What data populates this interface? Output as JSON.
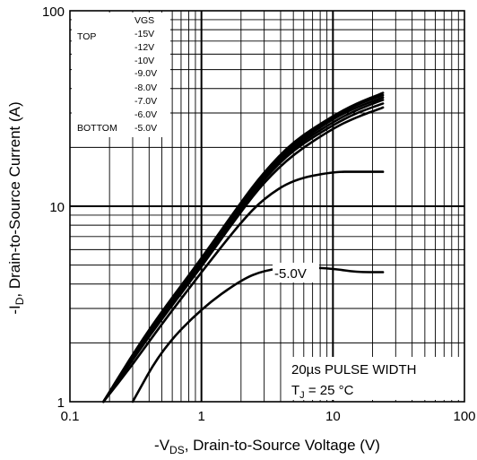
{
  "chart_data": {
    "type": "line",
    "x_scale": "log",
    "y_scale": "log",
    "xlim": [
      0.1,
      100
    ],
    "ylim": [
      1,
      100
    ],
    "grid": true,
    "x_ticks": [
      "0.1",
      "1",
      "10",
      "100"
    ],
    "y_ticks": [
      "1",
      "10",
      "100"
    ],
    "xlabel": {
      "prefix": "-V",
      "sub": "DS",
      "suffix": ", Drain-to-Source Voltage (V)"
    },
    "ylabel": {
      "prefix": "-I",
      "sub": "D",
      "suffix": ", Drain-to-Source Current (A)"
    },
    "legend": {
      "header": "VGS",
      "top_label": "TOP",
      "bottom_label": "BOTTOM",
      "entries": [
        "-15V",
        "-12V",
        "-10V",
        "-9.0V",
        "-8.0V",
        "-7.0V",
        "-6.0V",
        "-5.0V"
      ],
      "placement": "top-left"
    },
    "annotation": {
      "line1": "20µs PULSE WIDTH",
      "line2_prefix": "T",
      "line2_sub": "J",
      "line2_suffix": " = 25 °C"
    },
    "curve_label": "-5.0V",
    "x": [
      0.18,
      0.3,
      0.5,
      1,
      2,
      3,
      5,
      10,
      15,
      24
    ],
    "series": [
      {
        "name": "-15V",
        "values": [
          1.0,
          1.75,
          2.9,
          5.4,
          10.5,
          15.0,
          21.5,
          29.0,
          33.5,
          38.0
        ]
      },
      {
        "name": "-12V",
        "values": [
          1.0,
          1.73,
          2.85,
          5.3,
          10.3,
          14.7,
          21.0,
          28.5,
          33.0,
          37.0
        ]
      },
      {
        "name": "-10V",
        "values": [
          1.0,
          1.7,
          2.8,
          5.2,
          10.1,
          14.4,
          20.5,
          28.0,
          32.0,
          36.0
        ]
      },
      {
        "name": "-9.0V",
        "values": [
          1.0,
          1.68,
          2.75,
          5.1,
          9.9,
          14.1,
          20.0,
          27.0,
          31.0,
          35.0
        ]
      },
      {
        "name": "-8.0V",
        "values": [
          1.0,
          1.66,
          2.7,
          5.0,
          9.7,
          13.8,
          19.5,
          26.0,
          30.0,
          33.5
        ]
      },
      {
        "name": "-7.0V",
        "values": [
          1.0,
          1.64,
          2.65,
          4.9,
          9.4,
          13.3,
          18.5,
          25.0,
          28.5,
          32.0
        ]
      },
      {
        "name": "-6.0V",
        "values": [
          1.0,
          1.55,
          2.5,
          4.6,
          8.3,
          11.0,
          13.7,
          15.0,
          15.0,
          15.0
        ]
      },
      {
        "name": "-5.0V",
        "values": [
          null,
          0.98,
          1.85,
          3.0,
          4.2,
          4.7,
          4.9,
          4.8,
          4.6,
          4.6
        ]
      }
    ]
  }
}
